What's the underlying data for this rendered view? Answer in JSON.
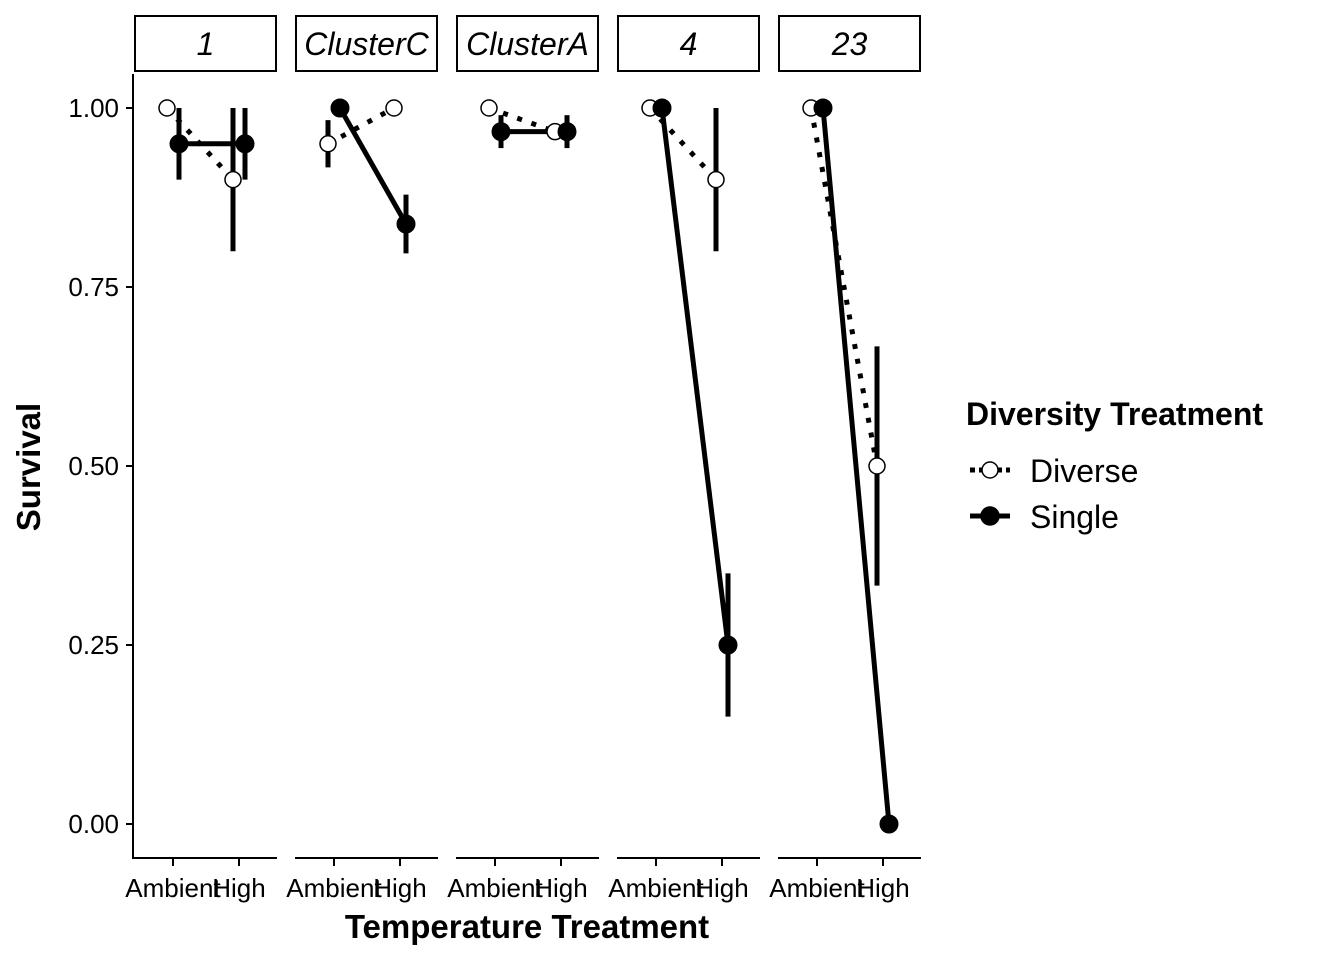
{
  "chart_data": {
    "type": "line",
    "facet_strips": [
      "1",
      "ClusterC",
      "ClusterA",
      "4",
      "23"
    ],
    "categories": [
      "Ambient",
      "High"
    ],
    "xlabel": "Temperature Treatment",
    "ylabel": "Survival",
    "ylim": [
      0,
      1
    ],
    "yticks": [
      "0.00",
      "0.25",
      "0.50",
      "0.75",
      "1.00"
    ],
    "legend": {
      "title": "Diversity Treatment",
      "placement": "right",
      "entries": [
        "Diverse",
        "Single"
      ]
    },
    "series": [
      {
        "name": "Diverse",
        "style": "dotted",
        "marker": "open-circle",
        "panels": [
          {
            "values": [
              1.0,
              0.9
            ],
            "err_low": [
              null,
              0.8
            ],
            "err_high": [
              null,
              1.0
            ]
          },
          {
            "values": [
              0.95,
              1.0
            ],
            "err_low": [
              0.917,
              null
            ],
            "err_high": [
              0.983,
              null
            ]
          },
          {
            "values": [
              1.0,
              0.967
            ],
            "err_low": [
              null,
              null
            ],
            "err_high": [
              null,
              null
            ]
          },
          {
            "values": [
              1.0,
              0.9
            ],
            "err_low": [
              null,
              0.8
            ],
            "err_high": [
              null,
              1.0
            ]
          },
          {
            "values": [
              1.0,
              0.5
            ],
            "err_low": [
              null,
              0.333
            ],
            "err_high": [
              null,
              0.667
            ]
          }
        ]
      },
      {
        "name": "Single",
        "style": "solid",
        "marker": "filled-circle",
        "panels": [
          {
            "values": [
              0.95,
              0.95
            ],
            "err_low": [
              0.9,
              0.9
            ],
            "err_high": [
              1.0,
              1.0
            ]
          },
          {
            "values": [
              1.0,
              0.838
            ],
            "err_low": [
              null,
              0.797
            ],
            "err_high": [
              null,
              0.879
            ]
          },
          {
            "values": [
              0.967,
              0.967
            ],
            "err_low": [
              0.944,
              0.944
            ],
            "err_high": [
              0.99,
              0.99
            ]
          },
          {
            "values": [
              1.0,
              0.25
            ],
            "err_low": [
              null,
              0.15
            ],
            "err_high": [
              null,
              0.35
            ]
          },
          {
            "values": [
              1.0,
              0.0
            ],
            "err_low": [
              null,
              null
            ],
            "err_high": [
              null,
              null
            ]
          }
        ]
      }
    ],
    "colors": {
      "ink": "#000000",
      "background": "#ffffff"
    }
  }
}
